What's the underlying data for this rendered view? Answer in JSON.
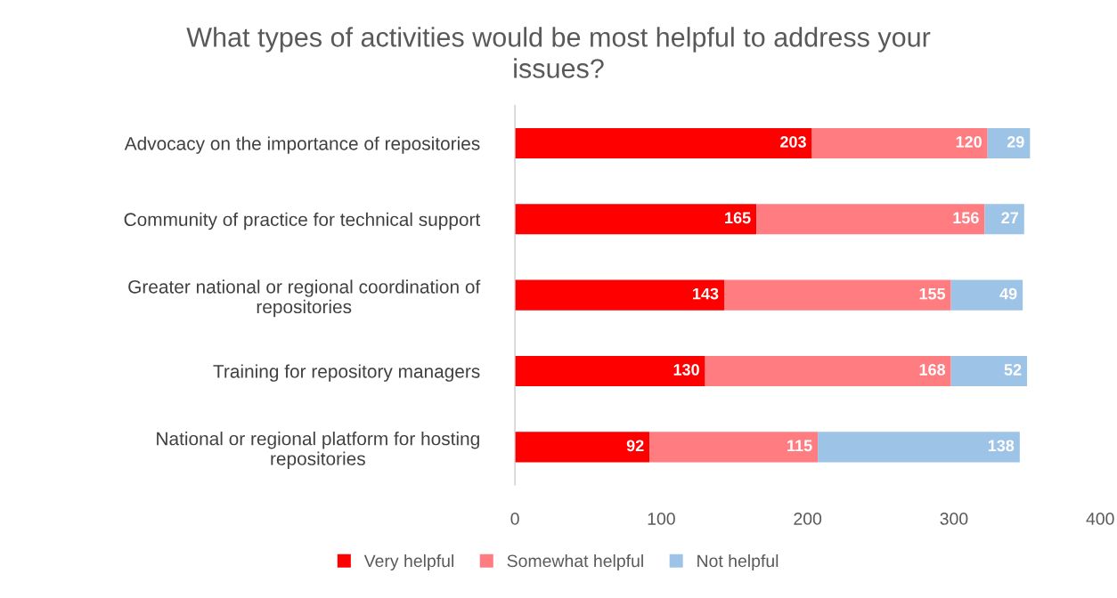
{
  "chart_data": {
    "type": "bar",
    "orientation": "horizontal",
    "stacked": true,
    "title": "What types of activities would be most helpful to address your\nissues?",
    "categories": [
      "Advocacy on the importance of repositories",
      "Community of practice for technical support",
      "Greater national or regional coordination of\nrepositories",
      "Training for repository managers",
      "National or regional platform for hosting\nrepositories"
    ],
    "series": [
      {
        "name": "Very helpful",
        "color": "#ff0000",
        "values": [
          203,
          165,
          143,
          130,
          92
        ]
      },
      {
        "name": "Somewhat helpful",
        "color": "#ff7c80",
        "values": [
          120,
          156,
          155,
          168,
          115
        ]
      },
      {
        "name": "Not helpful",
        "color": "#9dc3e6",
        "values": [
          29,
          27,
          49,
          52,
          138
        ]
      }
    ],
    "xlim": [
      0,
      400
    ],
    "xticks": [
      0,
      100,
      200,
      300,
      400
    ],
    "data_labels": true,
    "grid": false,
    "legend": "bottom"
  }
}
